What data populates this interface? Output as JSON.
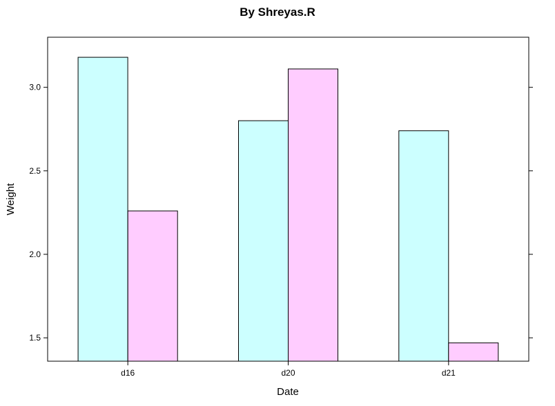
{
  "chart_data": {
    "type": "bar",
    "title": "By Shreyas.R",
    "xlabel": "Date",
    "ylabel": "Weight",
    "categories": [
      "d16",
      "d20",
      "d21"
    ],
    "series": [
      {
        "values": [
          3.18,
          2.8,
          2.74
        ],
        "color": "#ccffff"
      },
      {
        "values": [
          2.26,
          3.11,
          1.47
        ],
        "color": "#ffccff"
      }
    ],
    "ylim": [
      1.36,
      3.3
    ],
    "yticks": [
      1.5,
      2.0,
      2.5,
      3.0
    ],
    "ytick_labels": [
      "1.5",
      "2.0",
      "2.5",
      "3.0"
    ],
    "grid": false,
    "legend": "none"
  }
}
